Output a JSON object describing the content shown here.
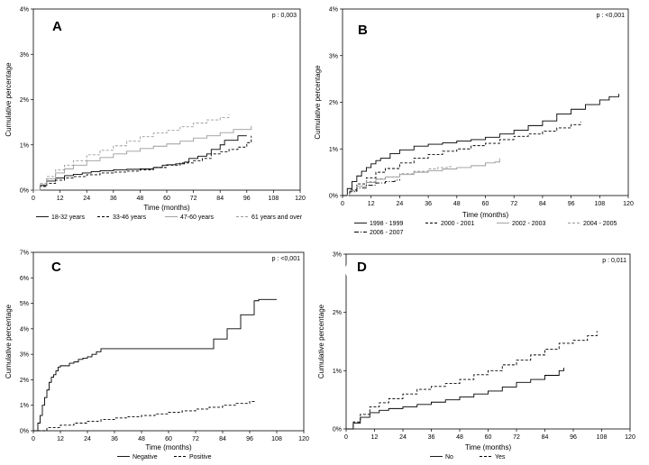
{
  "chart_data": [
    {
      "panel": "A",
      "type": "line",
      "pvalue": "p : 0,003",
      "xlabel": "Time (months)",
      "ylabel": "Cumulative percentage",
      "xticks": [
        "0",
        "12",
        "24",
        "36",
        "48",
        "60",
        "72",
        "84",
        "96",
        "108",
        "120"
      ],
      "yticks": [
        "0%",
        "1%",
        "2%",
        "3%",
        "4%"
      ],
      "xlim": [
        0,
        120
      ],
      "ylim": [
        0,
        4
      ],
      "legend": "bottom",
      "series": [
        {
          "name": "18-32 years",
          "style": "solid",
          "color": "#000000",
          "x": [
            0,
            3,
            6,
            10,
            14,
            18,
            22,
            26,
            30,
            36,
            42,
            48,
            54,
            58,
            60,
            64,
            68,
            70,
            74,
            78,
            80,
            84,
            86,
            90,
            92,
            96
          ],
          "y": [
            0,
            0.1,
            0.2,
            0.27,
            0.32,
            0.35,
            0.38,
            0.41,
            0.43,
            0.45,
            0.46,
            0.47,
            0.5,
            0.55,
            0.56,
            0.58,
            0.62,
            0.7,
            0.75,
            0.8,
            0.9,
            1.0,
            1.1,
            1.1,
            1.2,
            1.2
          ]
        },
        {
          "name": "33-46 years",
          "style": "dashed",
          "color": "#000000",
          "x": [
            0,
            3,
            6,
            10,
            14,
            18,
            24,
            30,
            36,
            42,
            48,
            54,
            60,
            66,
            72,
            76,
            80,
            84,
            88,
            92,
            96,
            98
          ],
          "y": [
            0,
            0.08,
            0.15,
            0.22,
            0.27,
            0.3,
            0.34,
            0.38,
            0.4,
            0.42,
            0.45,
            0.5,
            0.55,
            0.6,
            0.65,
            0.7,
            0.8,
            0.85,
            0.9,
            0.95,
            1.05,
            1.2
          ]
        },
        {
          "name": "47-60 years",
          "style": "solid",
          "color": "#9a9a9a",
          "x": [
            0,
            3,
            6,
            10,
            14,
            18,
            24,
            30,
            36,
            42,
            48,
            54,
            60,
            66,
            72,
            78,
            84,
            90,
            96,
            98
          ],
          "y": [
            0,
            0.12,
            0.25,
            0.38,
            0.47,
            0.55,
            0.65,
            0.72,
            0.8,
            0.86,
            0.92,
            0.97,
            1.02,
            1.08,
            1.15,
            1.2,
            1.27,
            1.34,
            1.34,
            1.42
          ]
        },
        {
          "name": "61 years and over",
          "style": "dashed",
          "color": "#9a9a9a",
          "x": [
            0,
            3,
            6,
            10,
            14,
            18,
            24,
            30,
            36,
            42,
            48,
            54,
            60,
            66,
            72,
            78,
            84,
            86,
            88
          ],
          "y": [
            0,
            0.15,
            0.3,
            0.45,
            0.55,
            0.65,
            0.78,
            0.88,
            0.98,
            1.08,
            1.18,
            1.26,
            1.32,
            1.4,
            1.48,
            1.55,
            1.6,
            1.6,
            1.67
          ]
        }
      ]
    },
    {
      "panel": "B",
      "type": "line",
      "pvalue": "p : <0,001",
      "xlabel": "Time (months)",
      "ylabel": "Cumulative percentage",
      "xticks": [
        "0",
        "12",
        "24",
        "36",
        "48",
        "60",
        "72",
        "84",
        "96",
        "108",
        "120"
      ],
      "yticks": [
        "0%",
        "1%",
        "2%",
        "3%",
        "4%"
      ],
      "xlim": [
        0,
        120
      ],
      "ylim": [
        0,
        4
      ],
      "legend": "bottom",
      "series": [
        {
          "name": "1998 - 1999",
          "style": "solid",
          "color": "#000000",
          "x": [
            0,
            2,
            4,
            6,
            8,
            10,
            12,
            14,
            16,
            20,
            24,
            30,
            36,
            42,
            48,
            54,
            60,
            66,
            72,
            78,
            84,
            90,
            96,
            102,
            108,
            112,
            116
          ],
          "y": [
            0,
            0.15,
            0.3,
            0.42,
            0.52,
            0.6,
            0.68,
            0.75,
            0.8,
            0.9,
            0.98,
            1.06,
            1.1,
            1.13,
            1.17,
            1.2,
            1.25,
            1.32,
            1.4,
            1.5,
            1.6,
            1.75,
            1.85,
            1.95,
            2.05,
            2.12,
            2.18
          ]
        },
        {
          "name": "2000 - 2001",
          "style": "dashed",
          "color": "#000000",
          "x": [
            0,
            3,
            6,
            10,
            14,
            18,
            24,
            30,
            36,
            42,
            48,
            54,
            60,
            66,
            72,
            78,
            84,
            90,
            96,
            100
          ],
          "y": [
            0,
            0.12,
            0.25,
            0.38,
            0.5,
            0.58,
            0.7,
            0.8,
            0.88,
            0.95,
            1.0,
            1.07,
            1.12,
            1.2,
            1.27,
            1.32,
            1.38,
            1.45,
            1.52,
            1.58
          ]
        },
        {
          "name": "2002 - 2003",
          "style": "solid",
          "color": "#9a9a9a",
          "x": [
            0,
            3,
            6,
            10,
            14,
            18,
            24,
            30,
            36,
            42,
            48,
            54,
            60,
            64,
            66
          ],
          "y": [
            0,
            0.1,
            0.2,
            0.28,
            0.35,
            0.4,
            0.45,
            0.5,
            0.53,
            0.57,
            0.6,
            0.64,
            0.7,
            0.72,
            0.8
          ]
        },
        {
          "name": "2004 - 2005",
          "style": "dashed",
          "color": "#9a9a9a",
          "x": [
            0,
            3,
            6,
            10,
            14,
            18,
            24,
            30,
            36,
            40,
            44,
            46
          ],
          "y": [
            0,
            0.1,
            0.2,
            0.3,
            0.36,
            0.4,
            0.47,
            0.52,
            0.57,
            0.6,
            0.62,
            0.65
          ]
        },
        {
          "name": "2006 - 2007",
          "style": "dashdot",
          "color": "#000000",
          "x": [
            0,
            3,
            6,
            10,
            14,
            18,
            22,
            24
          ],
          "y": [
            0,
            0.08,
            0.16,
            0.22,
            0.27,
            0.3,
            0.33,
            0.35
          ]
        }
      ]
    },
    {
      "panel": "C",
      "type": "line",
      "pvalue": "p : <0,001",
      "xlabel": "Time (months)",
      "ylabel": "Cumulative percentage",
      "xticks": [
        "0",
        "12",
        "24",
        "36",
        "48",
        "60",
        "72",
        "84",
        "96",
        "108",
        "120"
      ],
      "yticks": [
        "0%",
        "1%",
        "2%",
        "3%",
        "4%",
        "5%",
        "6%",
        "7%"
      ],
      "xlim": [
        0,
        120
      ],
      "ylim": [
        0,
        7
      ],
      "legend": "bottom",
      "series": [
        {
          "name": "Negative",
          "style": "solid",
          "color": "#000000",
          "x": [
            0,
            2,
            3,
            4,
            5,
            6,
            7,
            8,
            9,
            10,
            11,
            12,
            14,
            16,
            18,
            20,
            22,
            24,
            26,
            28,
            30,
            36,
            48,
            60,
            72,
            78,
            80,
            84,
            86,
            90,
            92,
            96,
            98,
            100,
            106,
            108
          ],
          "y": [
            0,
            0.3,
            0.6,
            1.0,
            1.3,
            1.6,
            1.9,
            2.1,
            2.2,
            2.35,
            2.5,
            2.55,
            2.55,
            2.65,
            2.7,
            2.8,
            2.85,
            2.9,
            3.0,
            3.1,
            3.22,
            3.22,
            3.22,
            3.22,
            3.22,
            3.22,
            3.6,
            3.6,
            4.0,
            4.0,
            4.55,
            4.55,
            5.1,
            5.15,
            5.15,
            5.15
          ]
        },
        {
          "name": "Positive",
          "style": "dashed",
          "color": "#000000",
          "x": [
            0,
            6,
            12,
            18,
            24,
            30,
            36,
            42,
            48,
            54,
            60,
            66,
            72,
            78,
            84,
            90,
            96,
            98
          ],
          "y": [
            0,
            0.12,
            0.22,
            0.3,
            0.37,
            0.44,
            0.5,
            0.55,
            0.6,
            0.66,
            0.72,
            0.78,
            0.85,
            0.92,
            1.0,
            1.07,
            1.15,
            1.2
          ]
        }
      ]
    },
    {
      "panel": "D",
      "type": "line",
      "pvalue": "p : 0,011",
      "xlabel": "Time (months)",
      "ylabel": "Cumulative percentage",
      "xticks": [
        "0",
        "12",
        "24",
        "36",
        "48",
        "60",
        "72",
        "84",
        "96",
        "108",
        "120"
      ],
      "yticks": [
        "0%",
        "1%",
        "2%",
        "3%"
      ],
      "xlim": [
        0,
        120
      ],
      "ylim": [
        0,
        3
      ],
      "legend": "bottom",
      "series": [
        {
          "name": "No",
          "style": "solid",
          "color": "#000000",
          "x": [
            0,
            3,
            6,
            10,
            14,
            18,
            24,
            30,
            36,
            42,
            48,
            54,
            60,
            66,
            72,
            78,
            84,
            90,
            92
          ],
          "y": [
            0,
            0.1,
            0.2,
            0.28,
            0.32,
            0.35,
            0.38,
            0.42,
            0.46,
            0.5,
            0.55,
            0.6,
            0.65,
            0.72,
            0.8,
            0.85,
            0.92,
            1.0,
            1.05
          ]
        },
        {
          "name": "Yes",
          "style": "dashed",
          "color": "#000000",
          "x": [
            0,
            3,
            6,
            10,
            14,
            18,
            24,
            30,
            36,
            42,
            48,
            54,
            60,
            66,
            72,
            78,
            84,
            90,
            96,
            102,
            106
          ],
          "y": [
            0,
            0.12,
            0.25,
            0.38,
            0.45,
            0.52,
            0.6,
            0.68,
            0.73,
            0.78,
            0.85,
            0.93,
            1.0,
            1.1,
            1.18,
            1.27,
            1.37,
            1.47,
            1.52,
            1.6,
            1.68
          ]
        }
      ]
    }
  ]
}
